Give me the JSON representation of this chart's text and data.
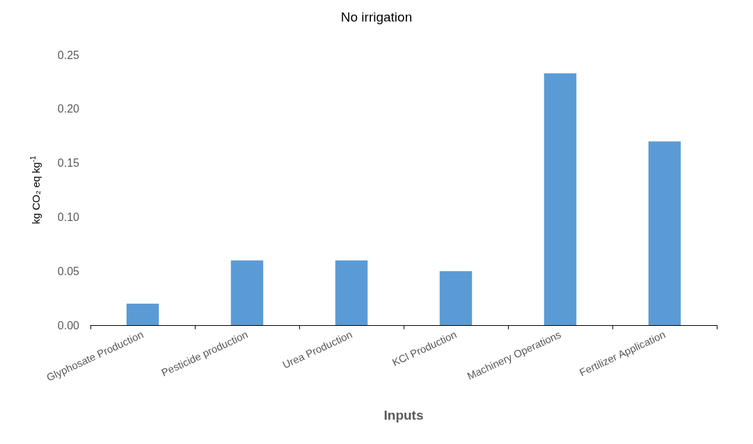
{
  "chart_data": {
    "type": "bar",
    "title": "No irrigation",
    "xlabel": "Inputs",
    "ylabel": "kg CO₂ eq kg$^{-1}$",
    "categories": [
      "Glyphosate Production",
      "Pesticide production",
      "Urea Production",
      "KCl Production",
      "Machinery Operations",
      "Fertilizer Application"
    ],
    "values": [
      0.02,
      0.06,
      0.06,
      0.05,
      0.233,
      0.17
    ],
    "color": "#5b9bd5",
    "ylim": [
      0,
      0.25
    ],
    "yticks": [
      {
        "value": 0,
        "label": "0.00"
      },
      {
        "value": 0.05,
        "label": "0.05"
      },
      {
        "value": 0.1,
        "label": "0.10"
      },
      {
        "value": 0.15,
        "label": "0.15"
      },
      {
        "value": 0.2,
        "label": "0.20"
      },
      {
        "value": 0.25,
        "label": "0.25"
      }
    ],
    "grid": false
  }
}
